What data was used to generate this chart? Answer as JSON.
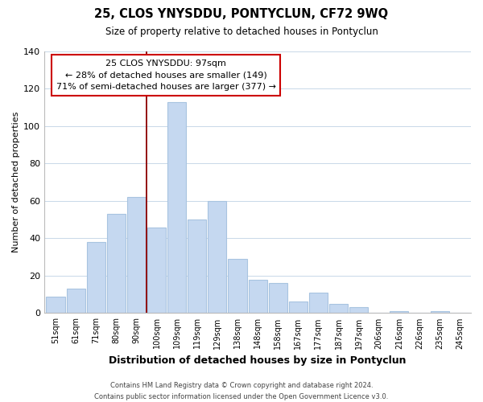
{
  "title": "25, CLOS YNYSDDU, PONTYCLUN, CF72 9WQ",
  "subtitle": "Size of property relative to detached houses in Pontyclun",
  "xlabel": "Distribution of detached houses by size in Pontyclun",
  "ylabel": "Number of detached properties",
  "bar_labels": [
    "51sqm",
    "61sqm",
    "71sqm",
    "80sqm",
    "90sqm",
    "100sqm",
    "109sqm",
    "119sqm",
    "129sqm",
    "138sqm",
    "148sqm",
    "158sqm",
    "167sqm",
    "177sqm",
    "187sqm",
    "197sqm",
    "206sqm",
    "216sqm",
    "226sqm",
    "235sqm",
    "245sqm"
  ],
  "bar_values": [
    9,
    13,
    38,
    53,
    62,
    46,
    113,
    50,
    60,
    29,
    18,
    16,
    6,
    11,
    5,
    3,
    0,
    1,
    0,
    1,
    0
  ],
  "bar_color": "#c5d8f0",
  "bar_edge_color": "#a8c4e0",
  "highlight_line_color": "#8b0000",
  "ylim": [
    0,
    140
  ],
  "yticks": [
    0,
    20,
    40,
    60,
    80,
    100,
    120,
    140
  ],
  "annotation_title": "25 CLOS YNYSDDU: 97sqm",
  "annotation_line1": "← 28% of detached houses are smaller (149)",
  "annotation_line2": "71% of semi-detached houses are larger (377) →",
  "annotation_box_color": "#ffffff",
  "annotation_box_edge": "#cc0000",
  "footer_line1": "Contains HM Land Registry data © Crown copyright and database right 2024.",
  "footer_line2": "Contains public sector information licensed under the Open Government Licence v3.0.",
  "background_color": "#ffffff",
  "grid_color": "#c8d8e8"
}
